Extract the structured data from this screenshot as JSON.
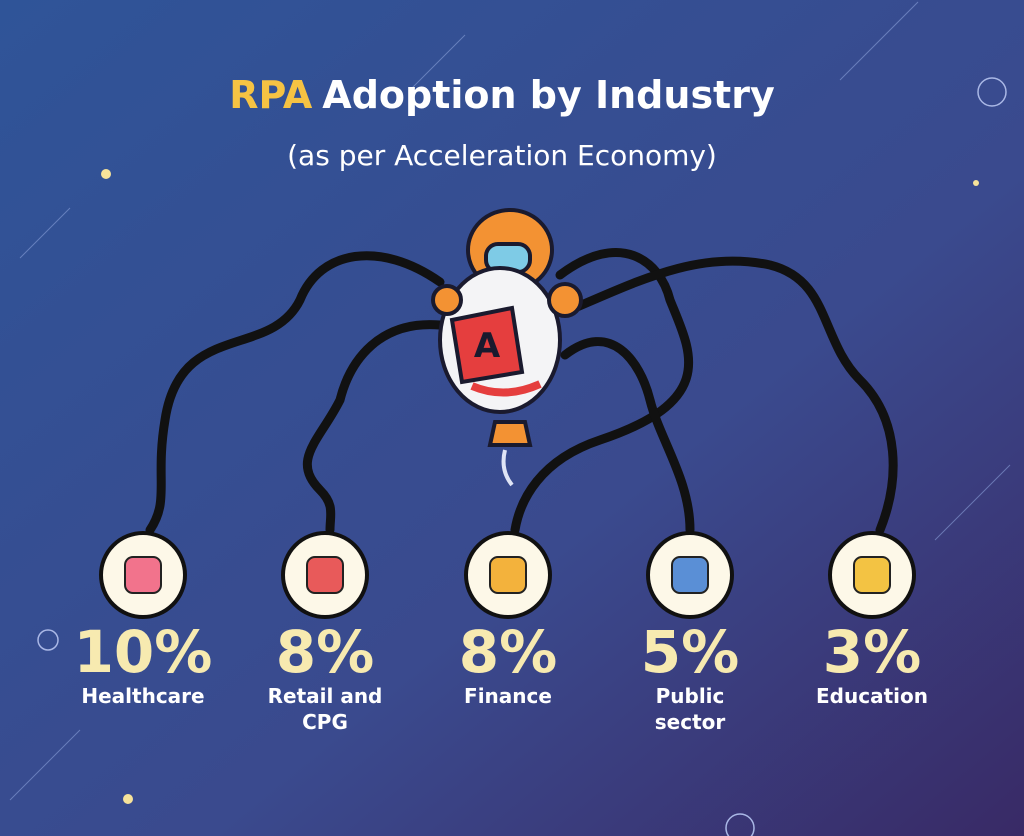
{
  "header": {
    "title_highlight": "RPA",
    "title": "Adoption by Industry",
    "subtitle": "(as per Acceleration Economy)"
  },
  "items": [
    {
      "value": "10%",
      "label": "Healthcare"
    },
    {
      "value": "8%",
      "label": "Retail and CPG"
    },
    {
      "value": "8%",
      "label": "Finance"
    },
    {
      "value": "5%",
      "label": "Public sector"
    },
    {
      "value": "3%",
      "label": "Education"
    }
  ]
}
